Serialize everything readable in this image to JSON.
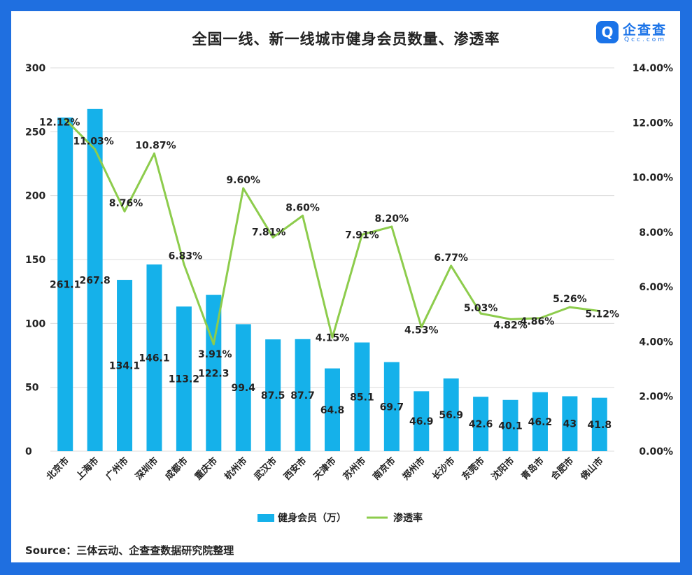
{
  "title": "全国一线、新一线城市健身会员数量、渗透率",
  "source": "Source：三体云动、企查查数据研究院整理",
  "logo": {
    "brand": "企查查",
    "sub": "Qcc.com",
    "mark": "Q"
  },
  "colors": {
    "bar": "#15b1ea",
    "line": "#8dcc4c",
    "frame": "#1f6fe0",
    "grid": "#dcdcdc"
  },
  "chart_data": {
    "type": "bar",
    "title": "全国一线、新一线城市健身会员数量、渗透率",
    "categories": [
      "北京市",
      "上海市",
      "广州市",
      "深圳市",
      "成都市",
      "重庆市",
      "杭州市",
      "武汉市",
      "西安市",
      "天津市",
      "苏州市",
      "南京市",
      "郑州市",
      "长沙市",
      "东莞市",
      "沈阳市",
      "青岛市",
      "合肥市",
      "佛山市"
    ],
    "series": [
      {
        "name": "健身会员（万）",
        "type": "bar",
        "axis": "left",
        "values": [
          261.1,
          267.8,
          134.1,
          146.1,
          113.2,
          122.3,
          99.4,
          87.5,
          87.7,
          64.8,
          85.1,
          69.7,
          46.9,
          56.9,
          42.6,
          40.1,
          46.2,
          43,
          41.8
        ],
        "labels": [
          "261.1",
          "267.8",
          "134.1",
          "146.1",
          "113.2",
          "122.3",
          "99.4",
          "87.5",
          "87.7",
          "64.8",
          "85.1",
          "69.7",
          "46.9",
          "56.9",
          "42.6",
          "40.1",
          "46.2",
          "43",
          "41.8"
        ]
      },
      {
        "name": "渗透率",
        "type": "line",
        "axis": "right",
        "values": [
          12.12,
          11.03,
          8.76,
          10.87,
          6.83,
          3.91,
          9.6,
          7.81,
          8.6,
          4.15,
          7.91,
          8.2,
          4.53,
          6.77,
          5.03,
          4.82,
          4.86,
          5.26,
          5.12
        ],
        "labels": [
          "12.12%",
          "11.03%",
          "8.76%",
          "10.87%",
          "6.83%",
          "3.91%",
          "9.60%",
          "7.81%",
          "8.60%",
          "4.15%",
          "7.91%",
          "8.20%",
          "4.53%",
          "6.77%",
          "5.03%",
          "4.82%",
          "4.86%",
          "5.26%",
          "5.12%"
        ]
      }
    ],
    "ylim_left": [
      0,
      300
    ],
    "yticks_left": [
      "300",
      "250",
      "200",
      "150",
      "100",
      "50",
      "0"
    ],
    "ylim_right": [
      0,
      14
    ],
    "yticks_right": [
      "14.00%",
      "12.00%",
      "10.00%",
      "8.00%",
      "6.00%",
      "4.00%",
      "2.00%",
      "0.00%"
    ],
    "grid": true,
    "legend": {
      "position": "bottom",
      "items": [
        "健身会员（万）",
        "渗透率"
      ]
    }
  }
}
